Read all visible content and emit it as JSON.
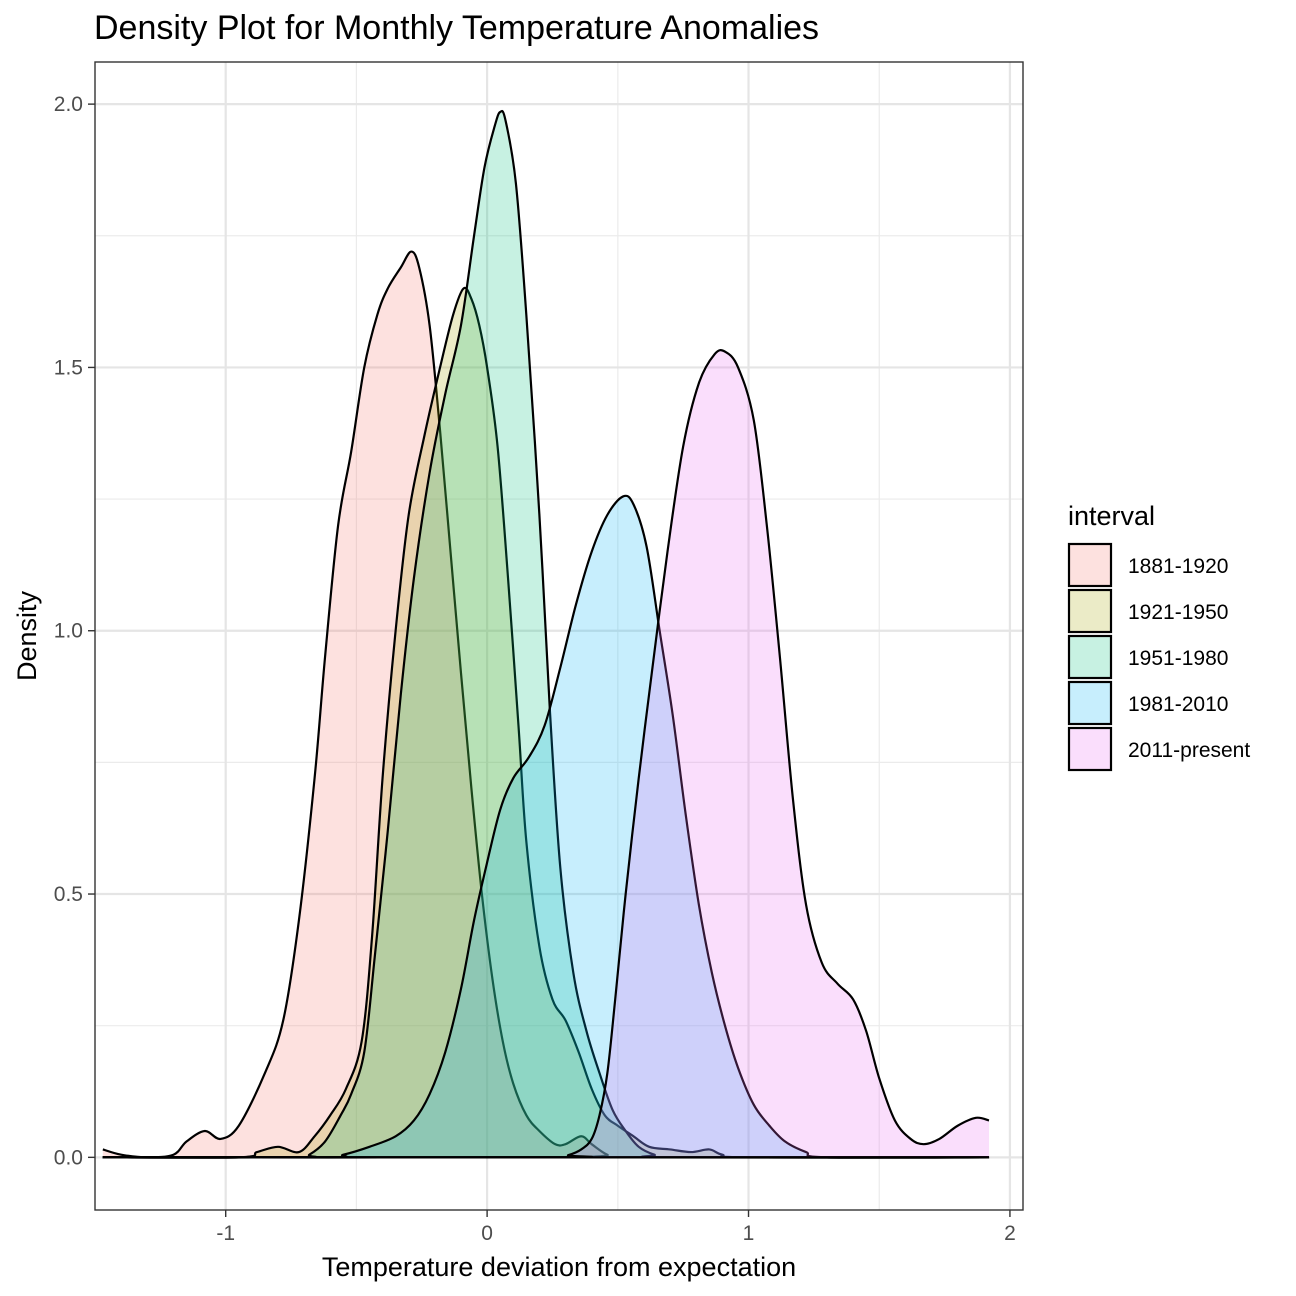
{
  "chart_data": {
    "type": "area",
    "title": "Density Plot for Monthly Temperature Anomalies",
    "xlabel": "Temperature deviation from expectation",
    "ylabel": "Density",
    "xlim": [
      -1.5,
      2.05
    ],
    "ylim": [
      -0.1,
      2.08
    ],
    "x_ticks": [
      -1,
      0,
      1,
      2
    ],
    "y_ticks": [
      0.0,
      0.5,
      1.0,
      1.5,
      2.0
    ],
    "x_tick_labels": [
      "-1",
      "0",
      "1",
      "2"
    ],
    "y_tick_labels": [
      "0.0",
      "0.5",
      "1.0",
      "1.5",
      "2.0"
    ],
    "grid": true,
    "legend": {
      "title": "interval",
      "position": "right"
    },
    "series": [
      {
        "name": "1881-1920",
        "color": "#F8766D",
        "points": [
          [
            -1.47,
            0.015
          ],
          [
            -1.4,
            0.005
          ],
          [
            -1.3,
            0.0
          ],
          [
            -1.2,
            0.005
          ],
          [
            -1.15,
            0.03
          ],
          [
            -1.08,
            0.05
          ],
          [
            -1.02,
            0.035
          ],
          [
            -0.95,
            0.06
          ],
          [
            -0.85,
            0.16
          ],
          [
            -0.78,
            0.26
          ],
          [
            -0.72,
            0.45
          ],
          [
            -0.66,
            0.72
          ],
          [
            -0.62,
            0.95
          ],
          [
            -0.57,
            1.2
          ],
          [
            -0.52,
            1.34
          ],
          [
            -0.47,
            1.5
          ],
          [
            -0.42,
            1.6
          ],
          [
            -0.38,
            1.65
          ],
          [
            -0.33,
            1.69
          ],
          [
            -0.29,
            1.72
          ],
          [
            -0.26,
            1.69
          ],
          [
            -0.22,
            1.58
          ],
          [
            -0.18,
            1.38
          ],
          [
            -0.14,
            1.15
          ],
          [
            -0.1,
            0.92
          ],
          [
            -0.06,
            0.7
          ],
          [
            -0.02,
            0.5
          ],
          [
            0.02,
            0.34
          ],
          [
            0.06,
            0.22
          ],
          [
            0.1,
            0.14
          ],
          [
            0.15,
            0.08
          ],
          [
            0.2,
            0.05
          ],
          [
            0.26,
            0.025
          ],
          [
            0.3,
            0.025
          ],
          [
            0.36,
            0.04
          ],
          [
            0.4,
            0.025
          ],
          [
            0.46,
            0.005
          ],
          [
            0.52,
            0.0
          ],
          [
            1.92,
            0.0
          ]
        ]
      },
      {
        "name": "1921-1950",
        "color": "#A3A500",
        "points": [
          [
            -1.47,
            0.0
          ],
          [
            -0.95,
            0.0
          ],
          [
            -0.88,
            0.01
          ],
          [
            -0.8,
            0.02
          ],
          [
            -0.72,
            0.01
          ],
          [
            -0.66,
            0.04
          ],
          [
            -0.6,
            0.08
          ],
          [
            -0.54,
            0.13
          ],
          [
            -0.48,
            0.22
          ],
          [
            -0.44,
            0.42
          ],
          [
            -0.4,
            0.72
          ],
          [
            -0.35,
            1.0
          ],
          [
            -0.3,
            1.22
          ],
          [
            -0.24,
            1.37
          ],
          [
            -0.18,
            1.5
          ],
          [
            -0.13,
            1.6
          ],
          [
            -0.09,
            1.65
          ],
          [
            -0.06,
            1.63
          ],
          [
            -0.03,
            1.58
          ],
          [
            0.0,
            1.5
          ],
          [
            0.04,
            1.35
          ],
          [
            0.08,
            1.1
          ],
          [
            0.12,
            0.82
          ],
          [
            0.15,
            0.6
          ],
          [
            0.2,
            0.4
          ],
          [
            0.25,
            0.3
          ],
          [
            0.3,
            0.26
          ],
          [
            0.35,
            0.2
          ],
          [
            0.4,
            0.13
          ],
          [
            0.45,
            0.08
          ],
          [
            0.5,
            0.06
          ],
          [
            0.56,
            0.04
          ],
          [
            0.62,
            0.02
          ],
          [
            0.7,
            0.015
          ],
          [
            0.78,
            0.01
          ],
          [
            0.85,
            0.015
          ],
          [
            0.9,
            0.005
          ],
          [
            1.0,
            0.0
          ],
          [
            1.92,
            0.0
          ]
        ]
      },
      {
        "name": "1951-1980",
        "color": "#00BF7D",
        "points": [
          [
            -1.47,
            0.0
          ],
          [
            -0.72,
            0.0
          ],
          [
            -0.68,
            0.005
          ],
          [
            -0.62,
            0.03
          ],
          [
            -0.56,
            0.08
          ],
          [
            -0.52,
            0.12
          ],
          [
            -0.47,
            0.2
          ],
          [
            -0.43,
            0.38
          ],
          [
            -0.38,
            0.62
          ],
          [
            -0.33,
            0.88
          ],
          [
            -0.28,
            1.1
          ],
          [
            -0.22,
            1.3
          ],
          [
            -0.16,
            1.45
          ],
          [
            -0.1,
            1.58
          ],
          [
            -0.05,
            1.75
          ],
          [
            -0.01,
            1.88
          ],
          [
            0.03,
            1.96
          ],
          [
            0.05,
            1.985
          ],
          [
            0.07,
            1.97
          ],
          [
            0.11,
            1.85
          ],
          [
            0.15,
            1.6
          ],
          [
            0.2,
            1.22
          ],
          [
            0.24,
            0.85
          ],
          [
            0.28,
            0.55
          ],
          [
            0.33,
            0.35
          ],
          [
            0.38,
            0.24
          ],
          [
            0.43,
            0.16
          ],
          [
            0.48,
            0.09
          ],
          [
            0.53,
            0.05
          ],
          [
            0.58,
            0.02
          ],
          [
            0.64,
            0.005
          ],
          [
            0.7,
            0.0
          ],
          [
            1.92,
            0.0
          ]
        ]
      },
      {
        "name": "1981-2010",
        "color": "#00B0F6",
        "points": [
          [
            -1.47,
            0.0
          ],
          [
            -0.62,
            0.0
          ],
          [
            -0.55,
            0.005
          ],
          [
            -0.45,
            0.02
          ],
          [
            -0.35,
            0.04
          ],
          [
            -0.28,
            0.07
          ],
          [
            -0.22,
            0.12
          ],
          [
            -0.16,
            0.2
          ],
          [
            -0.1,
            0.32
          ],
          [
            -0.05,
            0.45
          ],
          [
            0.0,
            0.56
          ],
          [
            0.05,
            0.66
          ],
          [
            0.1,
            0.72
          ],
          [
            0.16,
            0.76
          ],
          [
            0.22,
            0.82
          ],
          [
            0.28,
            0.93
          ],
          [
            0.34,
            1.05
          ],
          [
            0.4,
            1.15
          ],
          [
            0.46,
            1.22
          ],
          [
            0.52,
            1.255
          ],
          [
            0.56,
            1.24
          ],
          [
            0.61,
            1.16
          ],
          [
            0.66,
            1.0
          ],
          [
            0.71,
            0.84
          ],
          [
            0.76,
            0.65
          ],
          [
            0.81,
            0.48
          ],
          [
            0.86,
            0.35
          ],
          [
            0.91,
            0.25
          ],
          [
            0.96,
            0.17
          ],
          [
            1.02,
            0.1
          ],
          [
            1.08,
            0.06
          ],
          [
            1.14,
            0.03
          ],
          [
            1.22,
            0.01
          ],
          [
            1.3,
            0.0
          ],
          [
            1.92,
            0.0
          ]
        ]
      },
      {
        "name": "2011-present",
        "color": "#E76BF3",
        "points": [
          [
            -1.47,
            0.0
          ],
          [
            0.26,
            0.0
          ],
          [
            0.31,
            0.004
          ],
          [
            0.36,
            0.015
          ],
          [
            0.4,
            0.035
          ],
          [
            0.43,
            0.08
          ],
          [
            0.46,
            0.16
          ],
          [
            0.49,
            0.3
          ],
          [
            0.53,
            0.5
          ],
          [
            0.58,
            0.72
          ],
          [
            0.63,
            0.92
          ],
          [
            0.69,
            1.15
          ],
          [
            0.75,
            1.35
          ],
          [
            0.81,
            1.47
          ],
          [
            0.87,
            1.525
          ],
          [
            0.91,
            1.53
          ],
          [
            0.96,
            1.5
          ],
          [
            1.02,
            1.4
          ],
          [
            1.07,
            1.2
          ],
          [
            1.12,
            0.95
          ],
          [
            1.17,
            0.68
          ],
          [
            1.22,
            0.48
          ],
          [
            1.28,
            0.37
          ],
          [
            1.34,
            0.33
          ],
          [
            1.4,
            0.3
          ],
          [
            1.45,
            0.24
          ],
          [
            1.5,
            0.15
          ],
          [
            1.56,
            0.07
          ],
          [
            1.62,
            0.035
          ],
          [
            1.67,
            0.025
          ],
          [
            1.73,
            0.035
          ],
          [
            1.8,
            0.06
          ],
          [
            1.87,
            0.075
          ],
          [
            1.92,
            0.07
          ]
        ]
      }
    ]
  }
}
